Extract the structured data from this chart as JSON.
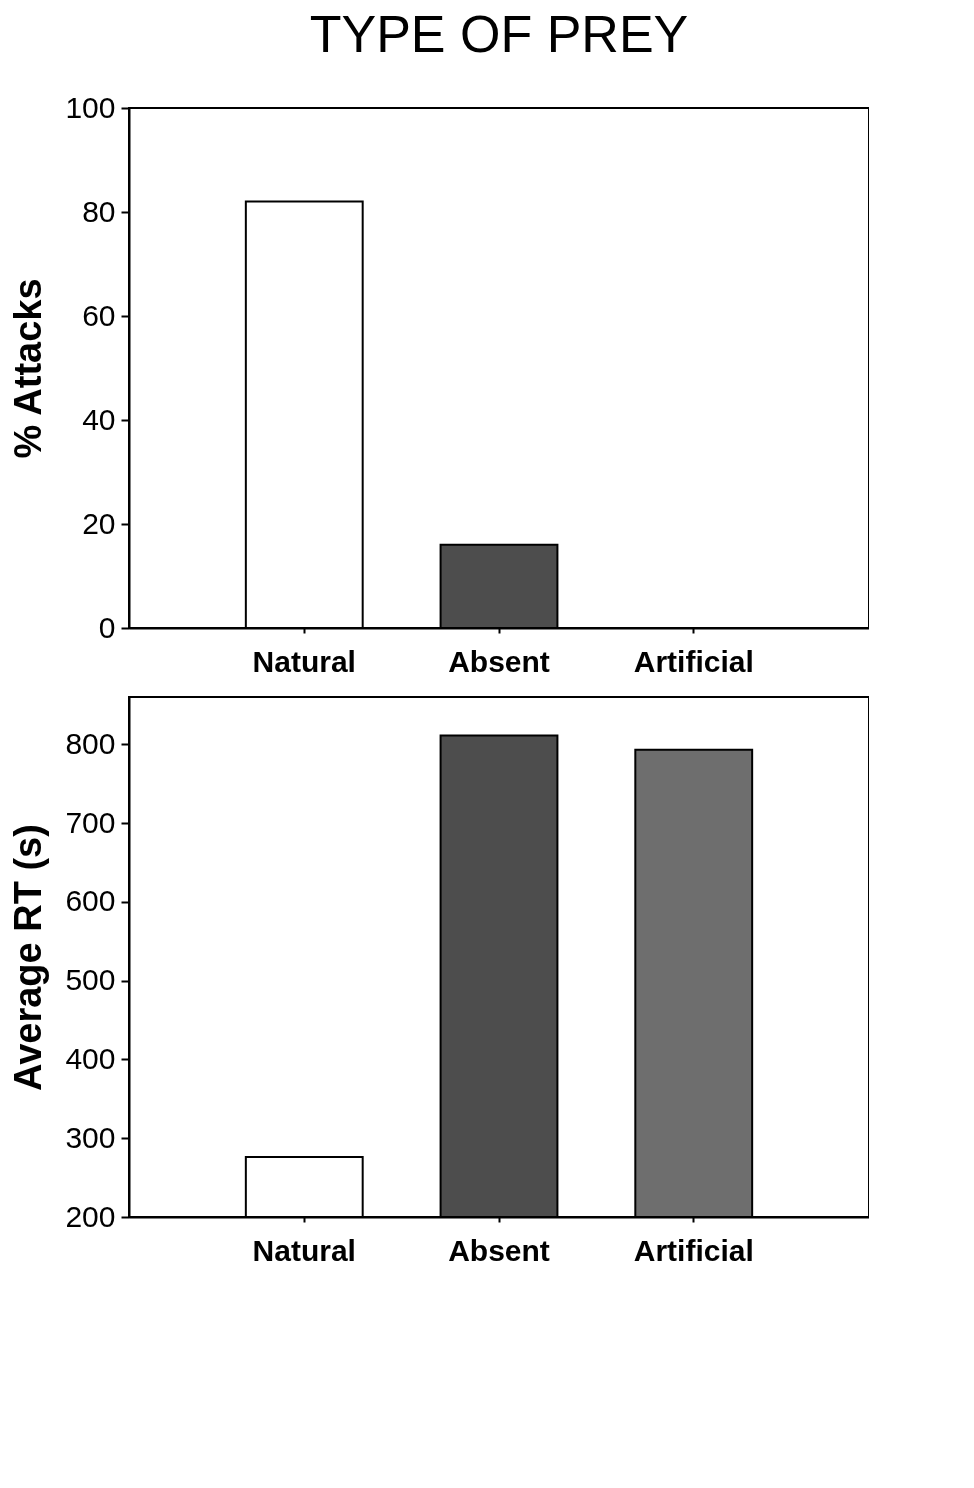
{
  "chart_data": [
    {
      "type": "bar",
      "title": "TYPE OF PREY",
      "ylabel": "% Attacks",
      "categories": [
        "Natural",
        "Absent",
        "Artificial"
      ],
      "values": [
        82,
        16,
        0
      ],
      "colors": [
        "#ffffff",
        "#4d4d4d",
        "#6e6e6e"
      ],
      "ylim": [
        0,
        100
      ],
      "yticks": [
        0,
        20,
        40,
        60,
        80,
        100
      ],
      "grid": false
    },
    {
      "type": "bar",
      "ylabel": "Average RT (s)",
      "categories": [
        "Natural",
        "Absent",
        "Artificial"
      ],
      "values": [
        276,
        811,
        793
      ],
      "colors": [
        "#ffffff",
        "#4d4d4d",
        "#6e6e6e"
      ],
      "ylim": [
        200,
        860
      ],
      "yticks": [
        200,
        300,
        400,
        500,
        600,
        700,
        800
      ],
      "grid": false
    }
  ]
}
